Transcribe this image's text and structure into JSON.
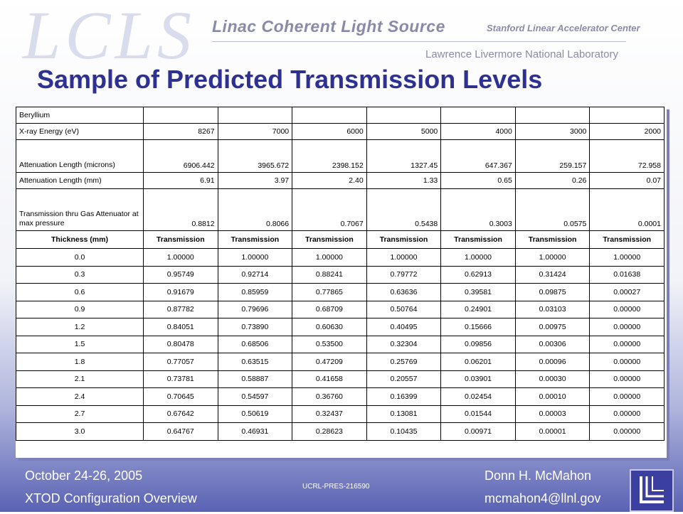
{
  "header": {
    "logo": "LCLS",
    "program": "Linac Coherent Light Source",
    "slac": "Stanford Linear Accelerator Center",
    "llnl": "Lawrence Livermore National Laboratory"
  },
  "title": "Sample of Predicted Transmission Levels",
  "table": {
    "material": "Beryllium",
    "energy_label": "X-ray Energy (eV)",
    "energies": [
      "8267",
      "7000",
      "6000",
      "5000",
      "4000",
      "3000",
      "2000"
    ],
    "att_microns_label": "Attenuation Length (microns)",
    "att_microns": [
      "6906.442",
      "3965.672",
      "2398.152",
      "1327.45",
      "647.367",
      "259.157",
      "72.958"
    ],
    "att_mm_label": "Attenuation Length (mm)",
    "att_mm": [
      "6.91",
      "3.97",
      "2.40",
      "1.33",
      "0.65",
      "0.26",
      "0.07"
    ],
    "gas_label": "Transmission thru Gas Attenuator at max pressure",
    "gas": [
      "0.8812",
      "0.8066",
      "0.7067",
      "0.5438",
      "0.3003",
      "0.0575",
      "0.0001"
    ],
    "header_thickness": "Thickness (mm)",
    "header_transmission": "Transmission",
    "rows": [
      {
        "t": "0.0",
        "v": [
          "1.00000",
          "1.00000",
          "1.00000",
          "1.00000",
          "1.00000",
          "1.00000",
          "1.00000"
        ]
      },
      {
        "t": "0.3",
        "v": [
          "0.95749",
          "0.92714",
          "0.88241",
          "0.79772",
          "0.62913",
          "0.31424",
          "0.01638"
        ]
      },
      {
        "t": "0.6",
        "v": [
          "0.91679",
          "0.85959",
          "0.77865",
          "0.63636",
          "0.39581",
          "0.09875",
          "0.00027"
        ]
      },
      {
        "t": "0.9",
        "v": [
          "0.87782",
          "0.79696",
          "0.68709",
          "0.50764",
          "0.24901",
          "0.03103",
          "0.00000"
        ]
      },
      {
        "t": "1.2",
        "v": [
          "0.84051",
          "0.73890",
          "0.60630",
          "0.40495",
          "0.15666",
          "0.00975",
          "0.00000"
        ]
      },
      {
        "t": "1.5",
        "v": [
          "0.80478",
          "0.68506",
          "0.53500",
          "0.32304",
          "0.09856",
          "0.00306",
          "0.00000"
        ]
      },
      {
        "t": "1.8",
        "v": [
          "0.77057",
          "0.63515",
          "0.47209",
          "0.25769",
          "0.06201",
          "0.00096",
          "0.00000"
        ]
      },
      {
        "t": "2.1",
        "v": [
          "0.73781",
          "0.58887",
          "0.41658",
          "0.20557",
          "0.03901",
          "0.00030",
          "0.00000"
        ]
      },
      {
        "t": "2.4",
        "v": [
          "0.70645",
          "0.54597",
          "0.36760",
          "0.16399",
          "0.02454",
          "0.00010",
          "0.00000"
        ]
      },
      {
        "t": "2.7",
        "v": [
          "0.67642",
          "0.50619",
          "0.32437",
          "0.13081",
          "0.01544",
          "0.00003",
          "0.00000"
        ]
      },
      {
        "t": "3.0",
        "v": [
          "0.64767",
          "0.46931",
          "0.28623",
          "0.10435",
          "0.00971",
          "0.00001",
          "0.00000"
        ]
      }
    ]
  },
  "footer": {
    "date": "October 24-26, 2005",
    "presenter": "Donn H. McMahon",
    "event": "XTOD Configuration Overview",
    "email": "mcmahon4@llnl.gov",
    "report": "UCRL-PRES-216590"
  }
}
